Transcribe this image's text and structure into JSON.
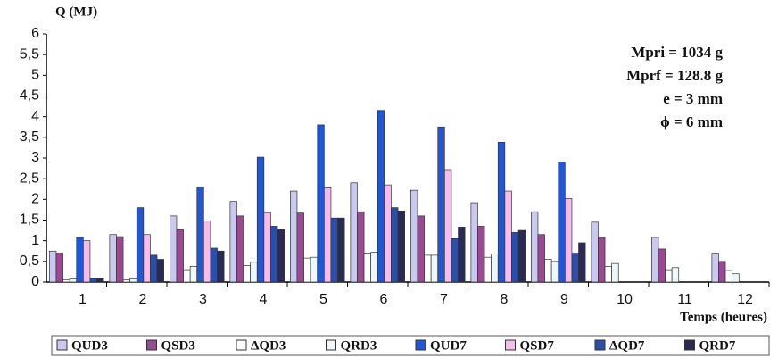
{
  "chart_data": {
    "type": "bar",
    "y_label": "Q (MJ)",
    "x_label": "Temps (heures)",
    "annotations": [
      "Mpri = 1034 g",
      "Mprf = 128.8 g",
      "e = 3 mm",
      "ϕ = 6 mm"
    ],
    "categories": [
      "1",
      "2",
      "3",
      "4",
      "5",
      "6",
      "7",
      "8",
      "9",
      "10",
      "11",
      "12"
    ],
    "ylim": [
      0,
      6
    ],
    "yticks": [
      0,
      {
        "value": 0.5,
        "label": "0,5"
      },
      1,
      {
        "value": 1.5,
        "label": "1,5"
      },
      2,
      {
        "value": 2.5,
        "label": "2,5"
      },
      3,
      {
        "value": 3.5,
        "label": "3,5"
      },
      4,
      {
        "value": 4.5,
        "label": "4,5"
      },
      5,
      {
        "value": 5.5,
        "label": "5,5"
      },
      6
    ],
    "series": [
      {
        "name": "QUD3",
        "color": "#c9c9f0",
        "values": [
          0.75,
          1.15,
          1.6,
          1.95,
          2.2,
          2.4,
          2.22,
          1.92,
          1.7,
          1.45,
          1.08,
          0.7
        ]
      },
      {
        "name": "QSD3",
        "color": "#9a4a92",
        "values": [
          0.7,
          1.1,
          1.27,
          1.6,
          1.67,
          1.7,
          1.6,
          1.35,
          1.15,
          1.08,
          0.8,
          0.5
        ]
      },
      {
        "name": "ΔQD3",
        "color": "#ffffff",
        "values": [
          0.05,
          0.05,
          0.3,
          0.4,
          0.58,
          0.7,
          0.65,
          0.6,
          0.55,
          0.38,
          0.3,
          0.28
        ]
      },
      {
        "name": "QRD3",
        "color": "#eef8fb",
        "values": [
          0.1,
          0.1,
          0.38,
          0.48,
          0.6,
          0.72,
          0.65,
          0.68,
          0.5,
          0.45,
          0.35,
          0.2
        ]
      },
      {
        "name": "QUD7",
        "color": "#2357cf",
        "values": [
          1.08,
          1.8,
          2.3,
          3.02,
          3.8,
          4.15,
          3.75,
          3.38,
          2.9,
          null,
          null,
          null
        ]
      },
      {
        "name": "QSD7",
        "color": "#f6bdec",
        "values": [
          1.0,
          1.15,
          1.48,
          1.68,
          2.28,
          2.35,
          2.72,
          2.2,
          2.02,
          null,
          null,
          null
        ]
      },
      {
        "name": "ΔQD7",
        "color": "#2a4fa8",
        "values": [
          0.1,
          0.65,
          0.82,
          1.35,
          1.55,
          1.8,
          1.05,
          1.2,
          0.7,
          null,
          null,
          null
        ]
      },
      {
        "name": "QRD7",
        "color": "#2a2a55",
        "values": [
          0.1,
          0.55,
          0.75,
          1.27,
          1.55,
          1.72,
          1.33,
          1.25,
          0.95,
          null,
          null,
          null
        ]
      }
    ]
  }
}
